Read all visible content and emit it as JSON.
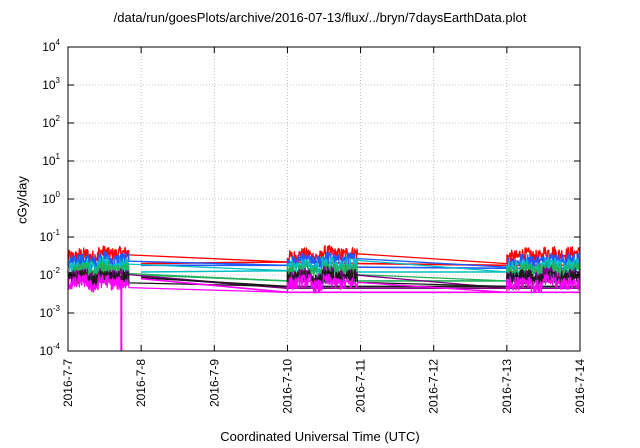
{
  "chart_data": {
    "type": "line",
    "title": "/data/run/goesPlots/archive/2016-07-13/flux/../bryn/7daysEarthData.plot",
    "xlabel": "Coordinated Universal Time (UTC)",
    "ylabel": "cGy/day",
    "yscale": "log",
    "ylim": [
      0.0001,
      10000
    ],
    "xlim": [
      "2016-7-7",
      "2016-7-14"
    ],
    "x_ticks": [
      "2016-7-7",
      "2016-7-8",
      "2016-7-9",
      "2016-7-10",
      "2016-7-11",
      "2016-7-12",
      "2016-7-13",
      "2016-7-14"
    ],
    "y_ticks": [
      {
        "base": "10",
        "exp": "-4",
        "value": 0.0001
      },
      {
        "base": "10",
        "exp": "-3",
        "value": 0.001
      },
      {
        "base": "10",
        "exp": "-2",
        "value": 0.01
      },
      {
        "base": "10",
        "exp": "-1",
        "value": 0.1
      },
      {
        "base": "10",
        "exp": "0",
        "value": 1
      },
      {
        "base": "10",
        "exp": "1",
        "value": 10
      },
      {
        "base": "10",
        "exp": "2",
        "value": 100
      },
      {
        "base": "10",
        "exp": "3",
        "value": 1000
      },
      {
        "base": "10",
        "exp": "4",
        "value": 10000
      }
    ],
    "grid": true,
    "segments": [
      {
        "x": [
          "2016-7-7 00:00",
          "2016-7-7 20:00"
        ]
      },
      {
        "x": [
          "2016-7-10 00:00",
          "2016-7-10 23:00"
        ]
      },
      {
        "x": [
          "2016-7-13 00:00",
          "2016-7-14 00:00"
        ]
      }
    ],
    "series": [
      {
        "color": "#ff0000",
        "values": [
          0.03,
          0.035,
          0.03,
          0.04,
          0.035,
          0.038
        ],
        "gap_values": [
          0.02,
          0.022,
          0.02,
          0.018
        ]
      },
      {
        "color": "#1e5aff",
        "values": [
          0.022,
          0.025,
          0.022,
          0.028,
          0.024,
          0.026
        ],
        "gap_values": [
          0.018,
          0.018,
          0.016,
          0.015
        ]
      },
      {
        "color": "#00bfbf",
        "values": [
          0.016,
          0.018,
          0.015,
          0.02,
          0.017,
          0.019
        ],
        "gap_values": [
          0.012,
          0.013,
          0.012,
          0.012
        ]
      },
      {
        "color": "#22b05a",
        "values": [
          0.012,
          0.014,
          0.012,
          0.015,
          0.013,
          0.014
        ],
        "gap_values": [
          0.01,
          0.007,
          0.007,
          0.007
        ]
      },
      {
        "color": "#800080",
        "values": [
          0.009,
          0.01,
          0.008,
          0.011,
          0.009,
          0.01
        ],
        "gap_values": [
          0.009,
          0.0045,
          0.0045,
          0.0045
        ]
      },
      {
        "color": "#1a1a1a",
        "values": [
          0.008,
          0.009,
          0.007,
          0.009,
          0.008,
          0.009
        ],
        "gap_values": [
          0.0085,
          0.005,
          0.005,
          0.005
        ]
      },
      {
        "color": "#ff00ff",
        "values": [
          0.006,
          0.007,
          0.005,
          0.007,
          0.006,
          0.006
        ],
        "gap_values": [
          0.008,
          0.0035,
          0.0035,
          0.0035
        ],
        "dip": {
          "x": "2016-7-7 17:30",
          "y": 0.0001
        }
      }
    ]
  }
}
